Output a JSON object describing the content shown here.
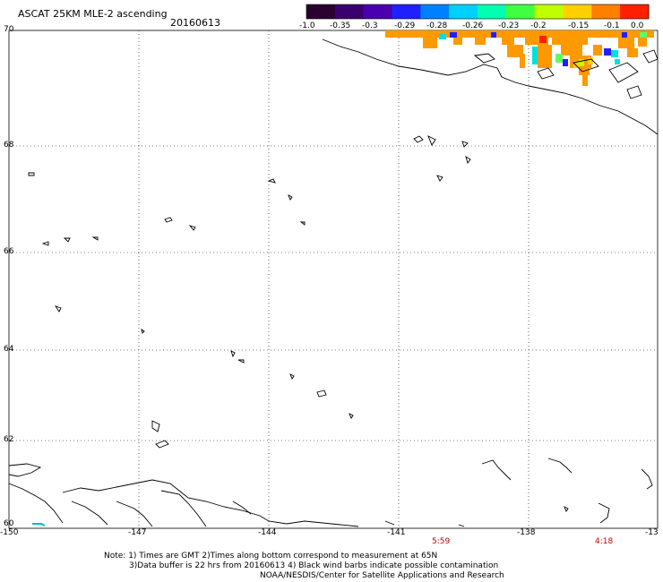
{
  "header": {
    "title": "ASCAT 25KM MLE-2 ascending",
    "date": "20160613"
  },
  "colorbar": {
    "labels": [
      "-1.0",
      "-0.35",
      "-0.3",
      "-0.29",
      "-0.28",
      "-0.26",
      "-0.23",
      "-0.2",
      "-0.15",
      "-0.1",
      "0.0"
    ],
    "colors": [
      "#2a0030",
      "#3a0070",
      "#4b00b0",
      "#2020ff",
      "#0080ff",
      "#00d0ff",
      "#00ffb0",
      "#40ff40",
      "#c0ff00",
      "#ffd000",
      "#ff8000",
      "#ff2000"
    ]
  },
  "axes": {
    "lon_labels": [
      "-150",
      "-147",
      "-144",
      "-141",
      "-138",
      "-13"
    ],
    "lat_labels": [
      "70",
      "68",
      "66",
      "64",
      "62",
      "60"
    ]
  },
  "time_labels": [
    "5:59",
    "4:18"
  ],
  "notes": {
    "line1": "Note: 1) Times are GMT 2)Times along bottom correspond to measurement at 65N",
    "line2": "3)Data buffer is 22 hrs from 20160613 4) Black wind barbs indicate possible contamination",
    "line3": "NOAA/NESDIS/Center for Satellite Applications and Research"
  }
}
